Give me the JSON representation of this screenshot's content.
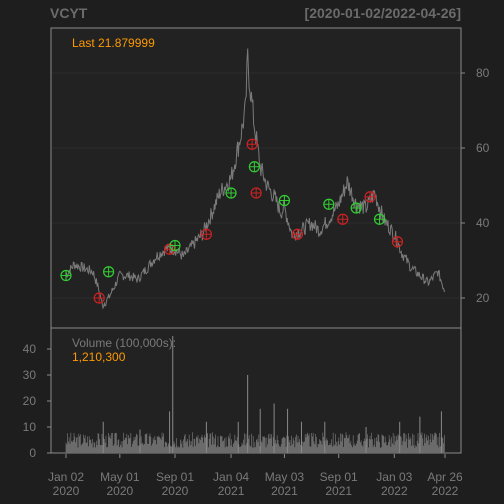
{
  "header": {
    "ticker": "VCYT",
    "range_label": "[2020-01-02/2022-04-26]"
  },
  "colors": {
    "background": "#1e1e1e",
    "panel": "#222222",
    "border": "#8a8a8a",
    "price_line": "#7a7a7a",
    "volume_bar": "#6b6b6b",
    "accent": "#ff9900",
    "buy_marker": "#33cc33",
    "sell_marker": "#cc2222"
  },
  "chart_data": [
    {
      "type": "line",
      "title": "VCYT",
      "annotation": "Last 21.879999",
      "y_axis_side": "right",
      "ylim": [
        12,
        92
      ],
      "y_ticks": [
        20,
        40,
        60,
        80
      ],
      "x": [
        "2020-01-02",
        "2020-01-20",
        "2020-02-10",
        "2020-03-02",
        "2020-03-16",
        "2020-03-23",
        "2020-04-06",
        "2020-05-01",
        "2020-05-20",
        "2020-06-10",
        "2020-07-01",
        "2020-07-20",
        "2020-08-10",
        "2020-09-01",
        "2020-09-20",
        "2020-10-10",
        "2020-11-01",
        "2020-11-20",
        "2020-12-10",
        "2021-01-04",
        "2021-01-25",
        "2021-02-05",
        "2021-02-10",
        "2021-02-15",
        "2021-02-25",
        "2021-03-10",
        "2021-03-25",
        "2021-04-10",
        "2021-04-25",
        "2021-05-03",
        "2021-05-20",
        "2021-06-10",
        "2021-07-01",
        "2021-07-20",
        "2021-08-10",
        "2021-09-01",
        "2021-09-20",
        "2021-10-10",
        "2021-11-01",
        "2021-11-20",
        "2021-12-10",
        "2022-01-03",
        "2022-01-20",
        "2022-02-10",
        "2022-03-01",
        "2022-03-20",
        "2022-04-10",
        "2022-04-26"
      ],
      "series": [
        {
          "values": [
            26,
            29,
            28,
            27,
            22,
            18,
            20,
            26,
            26,
            25,
            28,
            31,
            33,
            33,
            31,
            34,
            37,
            42,
            48,
            52,
            63,
            70,
            84,
            77,
            66,
            55,
            50,
            47,
            43,
            44,
            37,
            38,
            40,
            38,
            41,
            45,
            51,
            45,
            44,
            48,
            41,
            37,
            32,
            28,
            26,
            24,
            27,
            21.88
          ]
        }
      ],
      "markers": {
        "buy": [
          {
            "x": "2020-01-02",
            "y": 26
          },
          {
            "x": "2020-04-06",
            "y": 27
          },
          {
            "x": "2020-09-01",
            "y": 34
          },
          {
            "x": "2021-01-04",
            "y": 48
          },
          {
            "x": "2021-02-25",
            "y": 55
          },
          {
            "x": "2021-05-03",
            "y": 46
          },
          {
            "x": "2021-08-10",
            "y": 45
          },
          {
            "x": "2021-10-10",
            "y": 44
          },
          {
            "x": "2021-12-01",
            "y": 41
          }
        ],
        "sell": [
          {
            "x": "2020-03-16",
            "y": 20
          },
          {
            "x": "2020-08-20",
            "y": 33
          },
          {
            "x": "2020-11-10",
            "y": 37
          },
          {
            "x": "2021-02-20",
            "y": 61
          },
          {
            "x": "2021-03-01",
            "y": 48
          },
          {
            "x": "2021-06-01",
            "y": 37
          },
          {
            "x": "2021-09-10",
            "y": 41
          },
          {
            "x": "2021-11-10",
            "y": 47
          },
          {
            "x": "2022-01-10",
            "y": 35
          }
        ]
      }
    },
    {
      "type": "bar",
      "title": "Volume (100,000s):",
      "annotation": "1,210,300",
      "y_axis_side": "left",
      "ylim": [
        0,
        45
      ],
      "y_ticks": [
        0,
        10,
        20,
        30,
        40
      ],
      "x_ticks": [
        {
          "x": "2020-01-02",
          "label": [
            "Jan 02",
            "2020"
          ]
        },
        {
          "x": "2020-05-01",
          "label": [
            "May 01",
            "2020"
          ]
        },
        {
          "x": "2020-09-01",
          "label": [
            "Sep 01",
            "2020"
          ]
        },
        {
          "x": "2021-01-04",
          "label": [
            "Jan 04",
            "2021"
          ]
        },
        {
          "x": "2021-05-03",
          "label": [
            "May 03",
            "2021"
          ]
        },
        {
          "x": "2021-09-01",
          "label": [
            "Sep 01",
            "2021"
          ]
        },
        {
          "x": "2022-01-03",
          "label": [
            "Jan 03",
            "2022"
          ]
        },
        {
          "x": "2022-04-26",
          "label": [
            "Apr 26",
            "2022"
          ]
        }
      ],
      "volume_spikes": [
        {
          "x": "2020-03-25",
          "value": 12
        },
        {
          "x": "2020-06-15",
          "value": 9
        },
        {
          "x": "2020-08-20",
          "value": 16
        },
        {
          "x": "2020-08-27",
          "value": 45
        },
        {
          "x": "2020-11-10",
          "value": 12
        },
        {
          "x": "2021-01-20",
          "value": 12
        },
        {
          "x": "2021-02-10",
          "value": 30
        },
        {
          "x": "2021-03-10",
          "value": 17
        },
        {
          "x": "2021-04-10",
          "value": 19
        },
        {
          "x": "2021-05-10",
          "value": 17
        },
        {
          "x": "2021-06-10",
          "value": 12
        },
        {
          "x": "2021-08-01",
          "value": 12
        },
        {
          "x": "2021-11-01",
          "value": 10
        },
        {
          "x": "2022-01-15",
          "value": 12
        },
        {
          "x": "2022-03-01",
          "value": 14
        },
        {
          "x": "2022-04-18",
          "value": 16
        }
      ],
      "typical_volume_range": [
        2,
        8
      ]
    }
  ]
}
